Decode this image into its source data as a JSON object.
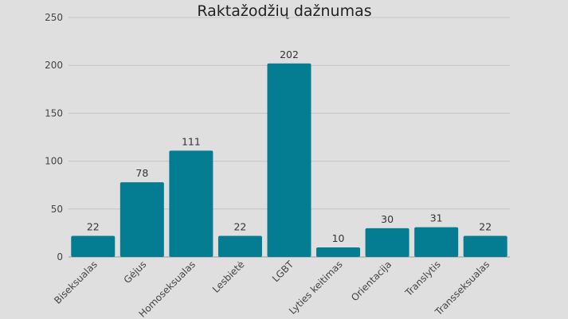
{
  "chart_data": {
    "type": "bar",
    "title": "Raktažodžių dažnumas",
    "xlabel": "",
    "ylabel": "",
    "categories": [
      "Biseksualas",
      "Gėjus",
      "Homoseksualas",
      "Lesbietė",
      "LGBT",
      "Lyties keitimas",
      "Orientacija",
      "Translytis",
      "Transseksualas"
    ],
    "values": [
      22,
      78,
      111,
      22,
      202,
      10,
      30,
      31,
      22
    ],
    "ylim": [
      0,
      250
    ],
    "yticks": [
      0,
      50,
      100,
      150,
      200,
      250
    ],
    "bar_color": "#047d93",
    "grid": true,
    "legend": "none"
  }
}
